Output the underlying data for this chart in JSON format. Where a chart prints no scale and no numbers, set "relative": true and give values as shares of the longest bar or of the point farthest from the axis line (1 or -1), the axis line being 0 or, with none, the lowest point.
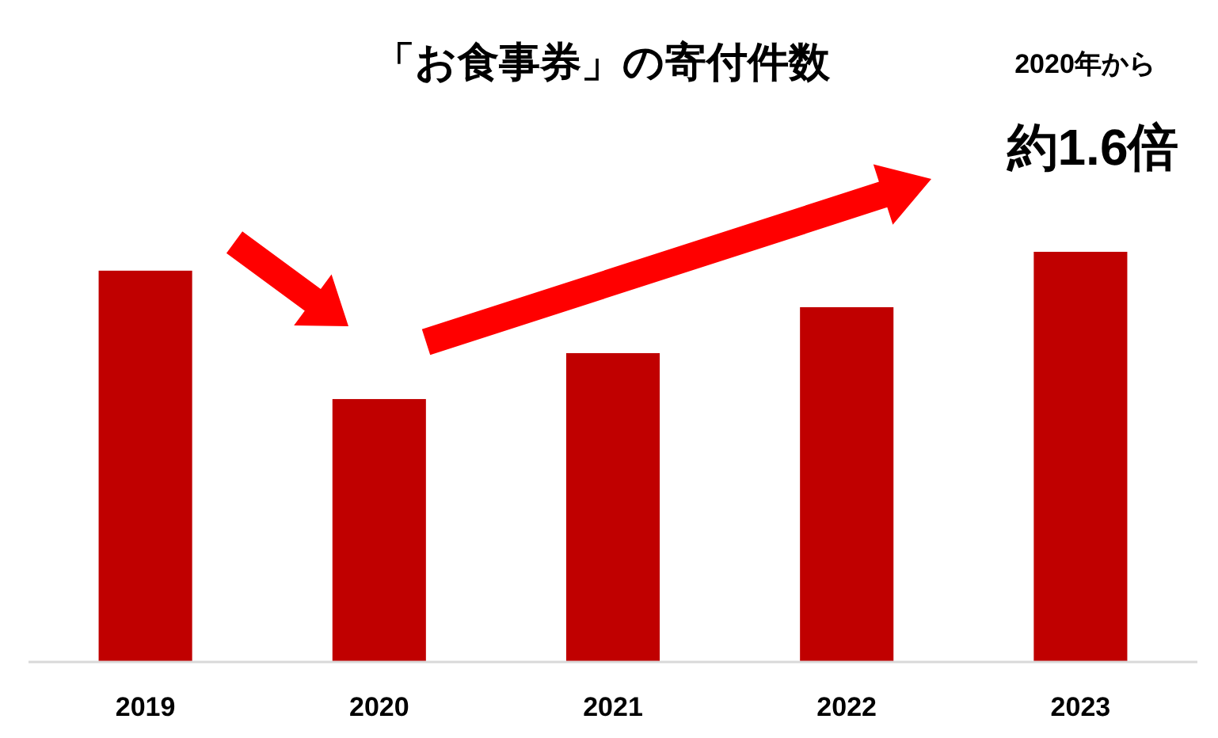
{
  "chart_data": {
    "type": "bar",
    "title": "「お食事券」の寄付件数",
    "categories": [
      "2019",
      "2020",
      "2021",
      "2022",
      "2023"
    ],
    "values": [
      0.954,
      0.641,
      0.753,
      0.865,
      1
    ],
    "color": "#c00000",
    "relative": true,
    "annotations": [
      "2020年から",
      "約1.6倍"
    ]
  }
}
